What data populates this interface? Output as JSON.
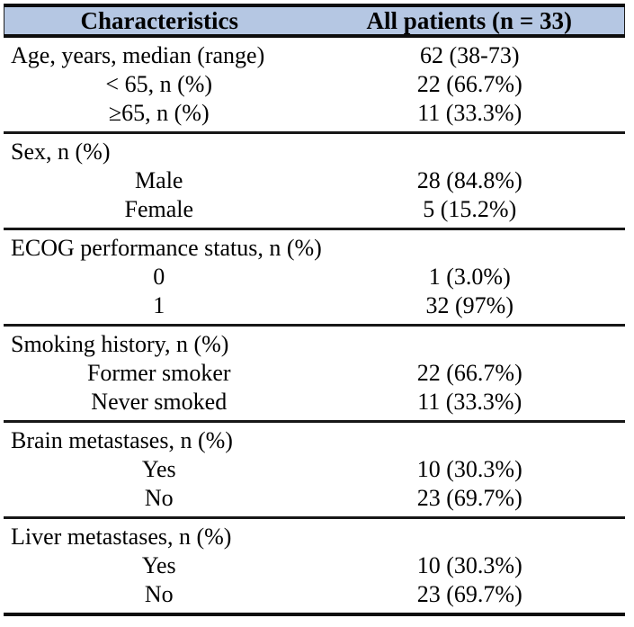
{
  "table": {
    "title_semantics": "Patient baseline characteristics table",
    "colors": {
      "header_background": "#b5c7e3",
      "rule_color": "#0d0d0d",
      "text_color": "#000000"
    },
    "header": {
      "characteristics": "Characteristics",
      "all_patients": "All patients (n = 33)"
    },
    "sections": [
      {
        "rows": [
          {
            "label": "Age, years, median (range)",
            "value": "62 (38-73)"
          },
          {
            "label": "< 65, n (%)",
            "value": "22 (66.7%)"
          },
          {
            "label": "≥65, n (%)",
            "value": "11 (33.3%)"
          }
        ]
      },
      {
        "rows": [
          {
            "label": "Sex, n (%)",
            "value": ""
          },
          {
            "label": "Male",
            "value": "28 (84.8%)"
          },
          {
            "label": "Female",
            "value": "5 (15.2%)"
          }
        ]
      },
      {
        "rows": [
          {
            "label": "ECOG performance status, n (%)",
            "value": ""
          },
          {
            "label": "0",
            "value": "1 (3.0%)"
          },
          {
            "label": "1",
            "value": "32 (97%)"
          }
        ]
      },
      {
        "rows": [
          {
            "label": "Smoking history, n (%)",
            "value": ""
          },
          {
            "label": "Former smoker",
            "value": "22 (66.7%)"
          },
          {
            "label": "Never smoked",
            "value": "11 (33.3%)"
          }
        ]
      },
      {
        "rows": [
          {
            "label": "Brain metastases, n (%)",
            "value": ""
          },
          {
            "label": "Yes",
            "value": "10 (30.3%)"
          },
          {
            "label": "No",
            "value": "23 (69.7%)"
          }
        ]
      },
      {
        "rows": [
          {
            "label": "Liver metastases, n (%)",
            "value": ""
          },
          {
            "label": "Yes",
            "value": "10 (30.3%)"
          },
          {
            "label": "No",
            "value": "23 (69.7%)"
          }
        ]
      }
    ]
  }
}
